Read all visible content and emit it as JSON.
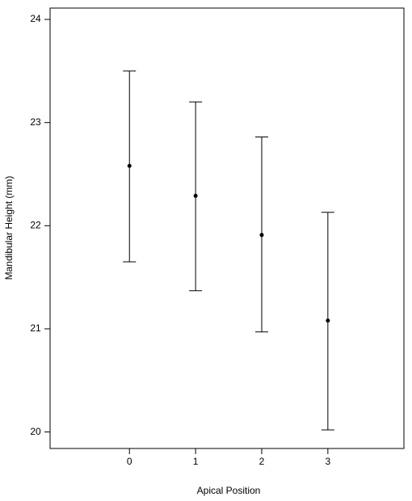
{
  "chart_data": {
    "type": "errorbar",
    "x_label": "Apical Position",
    "y_label": "Mandibular Height (mm)",
    "x": [
      0,
      1,
      2,
      3
    ],
    "series": [
      {
        "color": "#000000",
        "values": [
          22.58,
          22.29,
          21.91,
          21.08
        ],
        "lower": [
          21.65,
          21.37,
          20.97,
          20.02
        ],
        "upper": [
          23.5,
          23.2,
          22.86,
          22.13
        ]
      }
    ],
    "xlim": [
      -1.2,
      4.15
    ],
    "xticks": [
      0,
      1,
      2,
      3
    ],
    "ylim": [
      19.84,
      24.11
    ],
    "yticks": [
      20,
      21,
      22,
      23,
      24
    ]
  }
}
